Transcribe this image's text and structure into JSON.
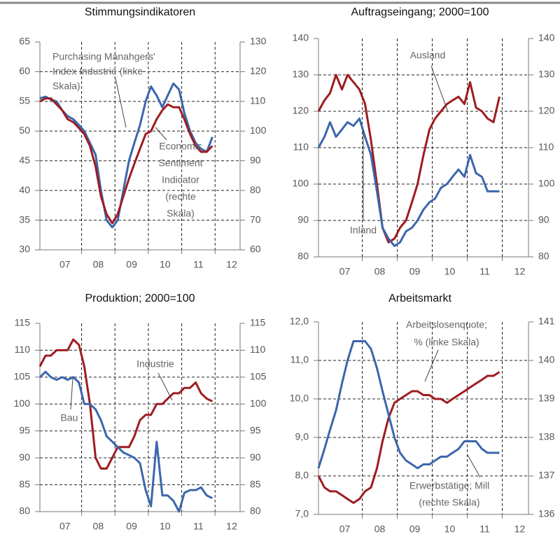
{
  "chart_data": [
    {
      "type": "line",
      "title": "Stimmungsindikatoren",
      "x": [
        2006.75,
        2006.92,
        2007.08,
        2007.25,
        2007.42,
        2007.58,
        2007.75,
        2007.92,
        2008.08,
        2008.25,
        2008.42,
        2008.58,
        2008.75,
        2008.92,
        2009.08,
        2009.25,
        2009.42,
        2009.58,
        2009.75,
        2009.92,
        2010.08,
        2010.25,
        2010.42,
        2010.58,
        2010.75,
        2010.92,
        2011.08,
        2011.25,
        2011.42,
        2011.58,
        2011.75,
        2011.92
      ],
      "series": [
        {
          "name": [
            "Purchasing Manahgers'",
            "Index Industrie (linke",
            "Skala)"
          ],
          "color": "#3b66ad",
          "axis": "y",
          "values": [
            55.5,
            55.8,
            55.3,
            55,
            53.5,
            52.5,
            52,
            51,
            50,
            48,
            46,
            40,
            35,
            33.8,
            35,
            40,
            45,
            48,
            51,
            55,
            57.5,
            56,
            54,
            56,
            58,
            57,
            53,
            50,
            48,
            47,
            46.5,
            49
          ]
        },
        {
          "name": [
            "Economic",
            "Sentiment",
            "Indicator",
            "(rechte",
            "Skala)"
          ],
          "color": "#9e1c20",
          "axis": "y2",
          "values": [
            110,
            111,
            111,
            109,
            107,
            104,
            103,
            101,
            99,
            95,
            88,
            78,
            72,
            69,
            72,
            78,
            84,
            89,
            94,
            99,
            100,
            104,
            107,
            109,
            108,
            108,
            104,
            99,
            95,
            93,
            93,
            95
          ]
        }
      ],
      "xlim": [
        2006.75,
        2012.75
      ],
      "xticks": [
        {
          "value": 2007.5,
          "label": "07"
        },
        {
          "value": 2008.5,
          "label": "08"
        },
        {
          "value": 2009.5,
          "label": "09"
        },
        {
          "value": 2010.5,
          "label": "10"
        },
        {
          "value": 2011.5,
          "label": "11"
        },
        {
          "value": 2012.5,
          "label": "12"
        }
      ],
      "ylim": [
        30,
        65
      ],
      "yticks": [
        30,
        35,
        40,
        45,
        50,
        55,
        60,
        65
      ],
      "y2lim": [
        60,
        130
      ],
      "y2ticks": [
        60,
        70,
        80,
        90,
        100,
        110,
        120,
        130
      ],
      "grid": true
    },
    {
      "type": "line",
      "title": "Auftragseingang; 2000=100",
      "x": [
        2006.75,
        2006.92,
        2007.08,
        2007.25,
        2007.42,
        2007.58,
        2007.75,
        2007.92,
        2008.08,
        2008.25,
        2008.42,
        2008.58,
        2008.75,
        2008.92,
        2009.08,
        2009.25,
        2009.42,
        2009.58,
        2009.75,
        2009.92,
        2010.08,
        2010.25,
        2010.42,
        2010.58,
        2010.75,
        2010.92,
        2011.08,
        2011.25,
        2011.42,
        2011.58,
        2011.75,
        2011.92
      ],
      "series": [
        {
          "name": [
            "Ausland"
          ],
          "color": "#9e1c20",
          "axis": "y",
          "values": [
            120,
            123,
            125,
            130,
            126,
            130,
            128,
            126,
            122,
            112,
            100,
            88,
            84,
            85,
            88,
            90,
            95,
            100,
            108,
            115,
            118,
            120,
            122,
            123,
            124,
            122,
            128,
            121,
            120,
            118,
            117,
            124
          ]
        },
        {
          "name": [
            "Inland"
          ],
          "color": "#3b66ad",
          "axis": "y",
          "values": [
            110,
            113,
            117,
            113,
            115,
            117,
            116,
            118,
            113,
            108,
            98,
            88,
            85,
            83,
            84,
            87,
            88,
            90,
            93,
            95,
            96,
            99,
            100,
            102,
            104,
            102,
            108,
            103,
            102,
            98,
            98,
            98
          ]
        }
      ],
      "xlim": [
        2006.75,
        2012.75
      ],
      "xticks": [
        {
          "value": 2007.5,
          "label": "07"
        },
        {
          "value": 2008.5,
          "label": "08"
        },
        {
          "value": 2009.5,
          "label": "09"
        },
        {
          "value": 2010.5,
          "label": "10"
        },
        {
          "value": 2011.5,
          "label": "11"
        },
        {
          "value": 2012.5,
          "label": "12"
        }
      ],
      "ylim": [
        80,
        140
      ],
      "yticks": [
        80,
        90,
        100,
        110,
        120,
        130,
        140
      ],
      "y2lim": [
        80,
        140
      ],
      "y2ticks": [
        80,
        90,
        100,
        110,
        120,
        130,
        140
      ],
      "grid": true
    },
    {
      "type": "line",
      "title": "Produktion; 2000=100",
      "x": [
        2006.75,
        2006.92,
        2007.08,
        2007.25,
        2007.42,
        2007.58,
        2007.75,
        2007.92,
        2008.08,
        2008.25,
        2008.42,
        2008.58,
        2008.75,
        2008.92,
        2009.08,
        2009.25,
        2009.42,
        2009.58,
        2009.75,
        2009.92,
        2010.08,
        2010.25,
        2010.42,
        2010.58,
        2010.75,
        2010.92,
        2011.08,
        2011.25,
        2011.42,
        2011.58,
        2011.75,
        2011.92
      ],
      "series": [
        {
          "name": [
            "Industrie"
          ],
          "color": "#9e1c20",
          "axis": "y",
          "values": [
            107,
            109,
            109,
            110,
            110,
            110,
            112,
            111,
            107,
            100,
            90,
            88,
            88,
            90,
            92,
            92,
            92,
            94,
            97,
            98,
            98,
            100,
            100,
            101,
            102,
            102,
            103,
            103,
            104,
            102,
            101,
            100.5
          ]
        },
        {
          "name": [
            "Bau"
          ],
          "color": "#3b66ad",
          "axis": "y",
          "values": [
            105,
            106,
            105,
            104.5,
            105,
            104.5,
            105,
            104,
            100,
            100,
            99,
            97,
            94,
            93,
            92,
            91,
            90.5,
            90,
            89,
            84,
            81,
            93,
            83,
            83,
            82,
            80,
            83.5,
            84,
            84,
            84.5,
            83,
            82.5
          ]
        }
      ],
      "xlim": [
        2006.75,
        2012.75
      ],
      "xticks": [
        {
          "value": 2007.5,
          "label": "07"
        },
        {
          "value": 2008.5,
          "label": "08"
        },
        {
          "value": 2009.5,
          "label": "09"
        },
        {
          "value": 2010.5,
          "label": "10"
        },
        {
          "value": 2011.5,
          "label": "11"
        },
        {
          "value": 2012.5,
          "label": "12"
        }
      ],
      "ylim": [
        80,
        115
      ],
      "yticks": [
        80,
        85,
        90,
        95,
        100,
        105,
        110,
        115
      ],
      "y2lim": [
        80,
        115
      ],
      "y2ticks": [
        80,
        85,
        90,
        95,
        100,
        105,
        110,
        115
      ],
      "grid": true
    },
    {
      "type": "line",
      "title": "Arbeitsmarkt",
      "x": [
        2006.75,
        2006.92,
        2007.08,
        2007.25,
        2007.42,
        2007.58,
        2007.75,
        2007.92,
        2008.08,
        2008.25,
        2008.42,
        2008.58,
        2008.75,
        2008.92,
        2009.08,
        2009.25,
        2009.42,
        2009.58,
        2009.75,
        2009.92,
        2010.08,
        2010.25,
        2010.42,
        2010.58,
        2010.75,
        2010.92,
        2011.08,
        2011.25,
        2011.42,
        2011.58,
        2011.75,
        2011.92
      ],
      "series": [
        {
          "name": [
            "Arbeitslosenquote;",
            "% (linke Skala)"
          ],
          "color": "#9e1c20",
          "axis": "y",
          "values": [
            8.0,
            7.7,
            7.6,
            7.6,
            7.5,
            7.4,
            7.3,
            7.4,
            7.6,
            7.7,
            8.2,
            8.9,
            9.5,
            9.9,
            10.0,
            10.1,
            10.2,
            10.2,
            10.1,
            10.1,
            10.0,
            10.0,
            9.9,
            10.0,
            10.1,
            10.2,
            10.3,
            10.4,
            10.5,
            10.6,
            10.6,
            10.7
          ]
        },
        {
          "name": [
            "Erwerbstätige; Mill",
            "(rechte Skala)"
          ],
          "color": "#3b66ad",
          "axis": "y2",
          "values": [
            137.2,
            137.7,
            138.2,
            138.7,
            139.4,
            140.0,
            140.5,
            140.5,
            140.5,
            140.3,
            139.8,
            139.2,
            138.6,
            138.0,
            137.6,
            137.4,
            137.3,
            137.2,
            137.3,
            137.3,
            137.4,
            137.5,
            137.5,
            137.6,
            137.7,
            137.9,
            137.9,
            137.9,
            137.7,
            137.6,
            137.6,
            137.6
          ]
        }
      ],
      "xlim": [
        2006.75,
        2012.75
      ],
      "xticks": [
        {
          "value": 2007.5,
          "label": "07"
        },
        {
          "value": 2008.5,
          "label": "08"
        },
        {
          "value": 2009.5,
          "label": "09"
        },
        {
          "value": 2010.5,
          "label": "10"
        },
        {
          "value": 2011.5,
          "label": "11"
        },
        {
          "value": 2012.5,
          "label": "12"
        }
      ],
      "ylim": [
        7,
        12
      ],
      "yticks": [
        {
          "value": 7,
          "label": "7,0"
        },
        {
          "value": 8,
          "label": "8,0"
        },
        {
          "value": 9,
          "label": "9,0"
        },
        {
          "value": 10,
          "label": "10,0"
        },
        {
          "value": 11,
          "label": "11,0"
        },
        {
          "value": 12,
          "label": "12,0"
        }
      ],
      "y2lim": [
        136,
        141
      ],
      "y2ticks": [
        136,
        137,
        138,
        139,
        140,
        141
      ],
      "grid": true
    }
  ]
}
